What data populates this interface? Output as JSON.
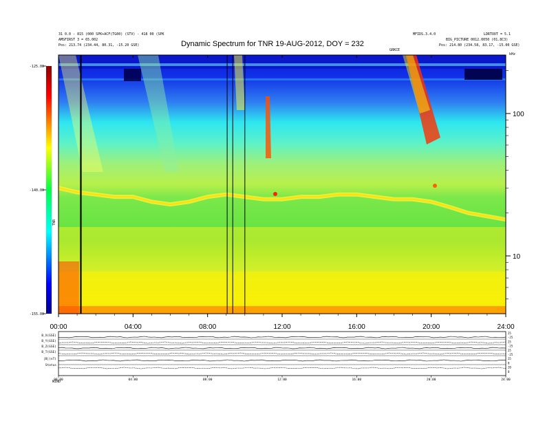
{
  "header": {
    "title": "Dynamic Spectrum for TNR 19-AUG-2012, DOY = 232",
    "left_line1": "31 0.0 - 815 (000 SPK+ACF(TG00) (STV) - 418 00 (SPK",
    "left_line2": "AMSFIRST 3 = 65.002",
    "left_line3_label": "Pos:",
    "left_line3_value": "213.74 (234.44, 80.31, -15.20 GSE)",
    "right_line1": "LDRTOOT = 5.1",
    "right_line2": "BIG_PICTURE 0012.0050 (01.8C3)",
    "right_line3_label": "Pos:",
    "right_line3_value": "214.80 (234.58, 83.17, -15.00 GSE)",
    "small_mid": "MFIDS.3.4.0",
    "small_mid2": "GRKCE"
  },
  "chart_data": {
    "type": "heatmap",
    "title": "Dynamic Spectrum for TNR 19-AUG-2012, DOY = 232",
    "x_tick_labels": [
      "00:00",
      "04:00",
      "08:00",
      "12:00",
      "16:00",
      "20:00",
      "24:00"
    ],
    "x_ticks_hours": [
      0,
      4,
      8,
      12,
      16,
      20,
      24
    ],
    "xlim_hours": [
      0,
      24
    ],
    "y_scale": "log",
    "y_tick_labels": [
      "100",
      "10"
    ],
    "y_ticks": [
      100,
      10
    ],
    "y_corner_label": "kHz",
    "colorbar": {
      "label": "TNR",
      "ticks": [
        "-125.00",
        "-140.00",
        "-155.00"
      ],
      "tick_values": [
        -125,
        -140,
        -155
      ],
      "range": [
        -155,
        -125
      ],
      "colors": [
        "#00008b",
        "#0000ff",
        "#00ffff",
        "#00ff00",
        "#ffff00",
        "#ff0000",
        "#8b0000"
      ]
    },
    "vertical_markers_hours": [
      1.2,
      9.05,
      9.35,
      10.0
    ],
    "plasma_line_hours": [
      0,
      1,
      2,
      3,
      4,
      5,
      6,
      7,
      8,
      9,
      10,
      11,
      12,
      13,
      14,
      15,
      16,
      17,
      18,
      19,
      20,
      21,
      22,
      23,
      24
    ],
    "plasma_line_khz": [
      30,
      28,
      27,
      26,
      26,
      24,
      23,
      24,
      26,
      27,
      26,
      25,
      25,
      26,
      26,
      27,
      27,
      26,
      25,
      25,
      24,
      22,
      20,
      19,
      18
    ]
  },
  "bottom_panel": {
    "labels": [
      "B_X(GSE)",
      "B_Y(GSE)",
      "B_Z(GSE)",
      "B_T(GSE)",
      "|B|(nT)",
      "Status"
    ],
    "status_value": "WIND",
    "time_labels": [
      "00:00",
      "04:00",
      "08:00",
      "12:00",
      "16:00",
      "20:00",
      "24:00"
    ],
    "right_ticks": [
      "25",
      "-25",
      "25",
      "-25",
      "25",
      "-25",
      "25",
      "0",
      "20",
      "0"
    ]
  }
}
